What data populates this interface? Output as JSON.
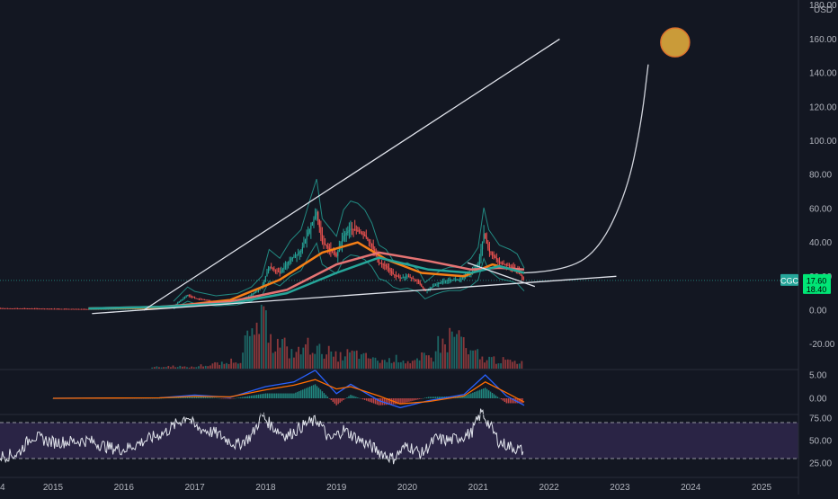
{
  "chart_data": [
    {
      "type": "candlestick",
      "symbol": "CGC",
      "currency": "USD",
      "price_label": "17.60",
      "secondary_label": "18.40",
      "ylim": [
        -30,
        180
      ],
      "y_ticks": [
        "180.00",
        "160.00",
        "140.00",
        "120.00",
        "100.00",
        "80.00",
        "60.00",
        "40.00",
        "20.00",
        "0.00",
        "-20.00"
      ],
      "x_ticks": [
        "2015",
        "2016",
        "2017",
        "2018",
        "2019",
        "2020",
        "2021",
        "2022",
        "2023",
        "2024",
        "2025"
      ],
      "x_edge_label": "4",
      "log_scale": false,
      "grid": false,
      "price_path": [
        [
          2014.0,
          1.2
        ],
        [
          2014.5,
          1.0
        ],
        [
          2015.0,
          0.8
        ],
        [
          2015.5,
          0.6
        ],
        [
          2016.0,
          0.7
        ],
        [
          2016.4,
          1.0
        ],
        [
          2016.7,
          2.5
        ],
        [
          2016.9,
          9
        ],
        [
          2017.0,
          7
        ],
        [
          2017.3,
          5
        ],
        [
          2017.6,
          6
        ],
        [
          2017.8,
          9
        ],
        [
          2017.95,
          14
        ],
        [
          2018.05,
          26
        ],
        [
          2018.2,
          22
        ],
        [
          2018.35,
          30
        ],
        [
          2018.5,
          35
        ],
        [
          2018.62,
          48
        ],
        [
          2018.72,
          58
        ],
        [
          2018.8,
          40
        ],
        [
          2018.9,
          36
        ],
        [
          2019.0,
          32
        ],
        [
          2019.1,
          44
        ],
        [
          2019.2,
          48
        ],
        [
          2019.3,
          47
        ],
        [
          2019.4,
          44
        ],
        [
          2019.5,
          38
        ],
        [
          2019.6,
          28
        ],
        [
          2019.7,
          26
        ],
        [
          2019.8,
          21
        ],
        [
          2019.9,
          19
        ],
        [
          2020.0,
          20
        ],
        [
          2020.15,
          17
        ],
        [
          2020.25,
          11
        ],
        [
          2020.4,
          15
        ],
        [
          2020.5,
          17
        ],
        [
          2020.6,
          18
        ],
        [
          2020.75,
          18
        ],
        [
          2020.9,
          22
        ],
        [
          2021.0,
          27
        ],
        [
          2021.08,
          45
        ],
        [
          2021.15,
          35
        ],
        [
          2021.3,
          28
        ],
        [
          2021.45,
          26
        ],
        [
          2021.55,
          24
        ],
        [
          2021.65,
          17.6
        ]
      ],
      "moving_averages": [
        {
          "color": "#f57f17",
          "points": [
            [
              2015.5,
              1
            ],
            [
              2016.5,
              1.5
            ],
            [
              2017.5,
              6
            ],
            [
              2018.2,
              18
            ],
            [
              2018.8,
              34
            ],
            [
              2019.3,
              40
            ],
            [
              2019.7,
              30
            ],
            [
              2020.2,
              22
            ],
            [
              2020.8,
              20
            ],
            [
              2021.2,
              27
            ],
            [
              2021.65,
              22
            ]
          ]
        },
        {
          "color": "#e57373",
          "points": [
            [
              2015.5,
              1
            ],
            [
              2016.5,
              2
            ],
            [
              2017.5,
              5
            ],
            [
              2018.3,
              12
            ],
            [
              2019.0,
              27
            ],
            [
              2019.6,
              34
            ],
            [
              2020.3,
              29
            ],
            [
              2020.9,
              24
            ],
            [
              2021.3,
              25
            ],
            [
              2021.65,
              24
            ]
          ]
        },
        {
          "color": "#26a69a",
          "points": [
            [
              2015.5,
              1
            ],
            [
              2016.5,
              2
            ],
            [
              2017.5,
              4
            ],
            [
              2018.3,
              10
            ],
            [
              2019.0,
              22
            ],
            [
              2019.6,
              31
            ],
            [
              2020.3,
              24
            ],
            [
              2020.9,
              22
            ],
            [
              2021.3,
              26
            ],
            [
              2021.65,
              22
            ]
          ]
        }
      ],
      "annotations": [
        {
          "type": "trendline",
          "from": [
            2016.28,
            0
          ],
          "to": [
            2022.15,
            160
          ]
        },
        {
          "type": "trendline",
          "from": [
            2015.55,
            -2
          ],
          "to": [
            2022.95,
            20
          ]
        },
        {
          "type": "trendline",
          "from": [
            2020.85,
            28
          ],
          "to": [
            2021.8,
            14
          ]
        },
        {
          "type": "curve",
          "points": [
            [
              2021.65,
              22
            ],
            [
              2022.2,
              23
            ],
            [
              2022.7,
              35
            ],
            [
              2023.1,
              70
            ],
            [
              2023.3,
              110
            ],
            [
              2023.4,
              145
            ]
          ]
        },
        {
          "type": "circle",
          "center": [
            2023.78,
            158
          ],
          "fill": "#d4a33b"
        }
      ]
    },
    {
      "type": "bar",
      "name": "volume",
      "description_units": "relative",
      "values_2018_2021": [
        2,
        3,
        2,
        4,
        6,
        10,
        35,
        55,
        30,
        20,
        28,
        22,
        15,
        18,
        14,
        10,
        12,
        9,
        14,
        30,
        40,
        18,
        12,
        10,
        8
      ]
    },
    {
      "type": "line",
      "name": "macd",
      "y_ticks": [
        "5.00",
        "0.00"
      ],
      "ylim": [
        -3,
        7
      ],
      "macd": [
        [
          2015.0,
          0
        ],
        [
          2016.5,
          0.1
        ],
        [
          2017.0,
          0.7
        ],
        [
          2017.5,
          0.2
        ],
        [
          2018.0,
          2.5
        ],
        [
          2018.4,
          3.5
        ],
        [
          2018.7,
          6
        ],
        [
          2019.0,
          1
        ],
        [
          2019.2,
          3
        ],
        [
          2019.6,
          -0.5
        ],
        [
          2019.9,
          -2
        ],
        [
          2020.3,
          -0.5
        ],
        [
          2020.8,
          0.8
        ],
        [
          2021.1,
          5
        ],
        [
          2021.4,
          0.5
        ],
        [
          2021.65,
          -1.5
        ]
      ],
      "signal": [
        [
          2015.0,
          0
        ],
        [
          2016.5,
          0.1
        ],
        [
          2017.0,
          0.4
        ],
        [
          2017.5,
          0.3
        ],
        [
          2018.0,
          1.8
        ],
        [
          2018.4,
          2.8
        ],
        [
          2018.7,
          4
        ],
        [
          2019.0,
          2
        ],
        [
          2019.2,
          2.5
        ],
        [
          2019.6,
          0.5
        ],
        [
          2019.9,
          -1.2
        ],
        [
          2020.3,
          -0.7
        ],
        [
          2020.8,
          0.5
        ],
        [
          2021.1,
          3.5
        ],
        [
          2021.4,
          1.2
        ],
        [
          2021.65,
          -0.8
        ]
      ]
    },
    {
      "type": "line",
      "name": "rsi",
      "y_ticks": [
        "75.00",
        "50.00",
        "25.00"
      ],
      "ylim": [
        20,
        90
      ],
      "bands": [
        70,
        30
      ],
      "values": [
        [
          2014.0,
          30
        ],
        [
          2014.5,
          35
        ],
        [
          2014.7,
          55
        ],
        [
          2015.0,
          48
        ],
        [
          2015.5,
          50
        ],
        [
          2015.8,
          42
        ],
        [
          2016.0,
          40
        ],
        [
          2016.3,
          50
        ],
        [
          2016.6,
          60
        ],
        [
          2016.9,
          78
        ],
        [
          2017.0,
          65
        ],
        [
          2017.3,
          58
        ],
        [
          2017.6,
          45
        ],
        [
          2017.8,
          55
        ],
        [
          2017.95,
          78
        ],
        [
          2018.1,
          65
        ],
        [
          2018.3,
          55
        ],
        [
          2018.6,
          70
        ],
        [
          2018.75,
          72
        ],
        [
          2018.9,
          50
        ],
        [
          2019.1,
          62
        ],
        [
          2019.3,
          52
        ],
        [
          2019.6,
          38
        ],
        [
          2019.8,
          30
        ],
        [
          2020.0,
          45
        ],
        [
          2020.2,
          35
        ],
        [
          2020.4,
          52
        ],
        [
          2020.6,
          50
        ],
        [
          2020.9,
          58
        ],
        [
          2021.05,
          82
        ],
        [
          2021.3,
          48
        ],
        [
          2021.5,
          42
        ],
        [
          2021.65,
          38
        ]
      ]
    }
  ]
}
